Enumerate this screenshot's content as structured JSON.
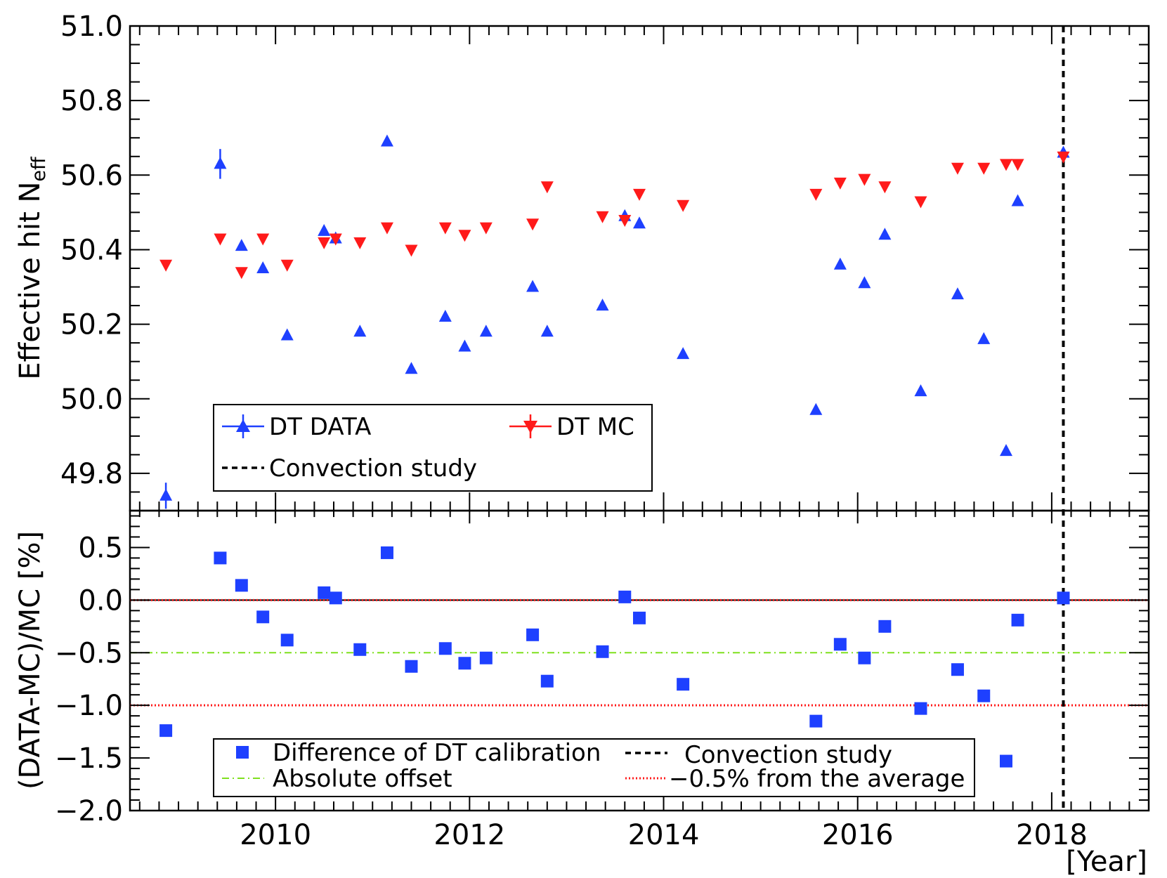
{
  "chart_data": {
    "type": "scatter",
    "x_unit_label": "[Year]",
    "x_range": [
      2008.5,
      2019.0
    ],
    "x_ticks": [
      "2010",
      "2012",
      "2014",
      "2016",
      "2018"
    ],
    "convection_study_x": 2018.12,
    "top_panel": {
      "ylabel_main": "Effective hit N",
      "ylabel_sub": "eff",
      "y_range": [
        49.7,
        51.0
      ],
      "y_ticks": [
        "49.8",
        "50.0",
        "50.2",
        "50.4",
        "50.6",
        "50.8",
        "51.0"
      ],
      "series": [
        {
          "name": "DT DATA",
          "color": "#1e40ff",
          "marker": "triangle-up",
          "x": [
            2008.87,
            2009.43,
            2009.65,
            2009.87,
            2010.12,
            2010.5,
            2010.62,
            2010.87,
            2011.15,
            2011.4,
            2011.75,
            2011.95,
            2012.17,
            2012.65,
            2012.8,
            2013.37,
            2013.6,
            2013.75,
            2014.2,
            2015.57,
            2015.82,
            2016.07,
            2016.28,
            2016.65,
            2017.03,
            2017.3,
            2017.53,
            2017.65,
            2018.12
          ],
          "y": [
            49.74,
            50.63,
            50.41,
            50.35,
            50.17,
            50.45,
            50.43,
            50.18,
            50.69,
            50.08,
            50.22,
            50.14,
            50.18,
            50.3,
            50.18,
            50.25,
            50.49,
            50.47,
            50.12,
            49.97,
            50.36,
            50.31,
            50.44,
            50.02,
            50.28,
            50.16,
            49.86,
            50.53,
            50.66
          ],
          "y_err": [
            0.035,
            0.04,
            0,
            0,
            0,
            0,
            0,
            0,
            0,
            0,
            0,
            0,
            0,
            0,
            0,
            0,
            0,
            0,
            0,
            0,
            0,
            0,
            0,
            0,
            0,
            0,
            0,
            0,
            0
          ]
        },
        {
          "name": "DT MC",
          "color": "#ff1a1a",
          "marker": "triangle-down",
          "x": [
            2008.87,
            2009.43,
            2009.65,
            2009.87,
            2010.12,
            2010.5,
            2010.62,
            2010.87,
            2011.15,
            2011.4,
            2011.75,
            2011.95,
            2012.17,
            2012.65,
            2012.8,
            2013.37,
            2013.6,
            2013.75,
            2014.2,
            2015.57,
            2015.82,
            2016.07,
            2016.28,
            2016.65,
            2017.03,
            2017.3,
            2017.53,
            2017.65,
            2018.12
          ],
          "y": [
            50.36,
            50.43,
            50.34,
            50.43,
            50.36,
            50.42,
            50.43,
            50.42,
            50.46,
            50.4,
            50.46,
            50.44,
            50.46,
            50.47,
            50.57,
            50.49,
            50.48,
            50.55,
            50.52,
            50.55,
            50.58,
            50.59,
            50.57,
            50.53,
            50.62,
            50.62,
            50.63,
            50.63,
            50.65
          ]
        }
      ],
      "legend": {
        "placement": "bottom-left",
        "entries": [
          "DT DATA",
          "DT MC",
          "Convection study"
        ]
      }
    },
    "bottom_panel": {
      "ylabel": "(DATA-MC)/MC [%]",
      "y_range": [
        -2.0,
        0.85
      ],
      "y_ticks": [
        "0.5",
        "0.0",
        "−0.5",
        "−1.0",
        "−1.5",
        "−2.0"
      ],
      "series": [
        {
          "name": "Difference of DT calibration",
          "color": "#1e40ff",
          "marker": "square",
          "x": [
            2008.87,
            2009.43,
            2009.65,
            2009.87,
            2010.12,
            2010.5,
            2010.62,
            2010.87,
            2011.15,
            2011.4,
            2011.75,
            2011.95,
            2012.17,
            2012.65,
            2012.8,
            2013.37,
            2013.6,
            2013.75,
            2014.2,
            2015.57,
            2015.82,
            2016.07,
            2016.28,
            2016.65,
            2017.03,
            2017.3,
            2017.53,
            2017.65,
            2018.12
          ],
          "y": [
            -1.24,
            0.4,
            0.14,
            -0.16,
            -0.38,
            0.07,
            0.02,
            -0.47,
            0.45,
            -0.63,
            -0.46,
            -0.6,
            -0.55,
            -0.33,
            -0.77,
            -0.49,
            0.03,
            -0.17,
            -0.8,
            -1.15,
            -0.42,
            -0.55,
            -0.25,
            -1.03,
            -0.66,
            -0.91,
            -1.53,
            -0.19,
            0.02
          ]
        }
      ],
      "lines": [
        {
          "name": "zero",
          "y": 0.0,
          "color": "#000000",
          "style": "solid"
        },
        {
          "name": "Absolute offset",
          "y": -0.5,
          "color": "#7fe01e",
          "style": "dash-dot"
        },
        {
          "name": "−0.5% from the average",
          "y": -1.0,
          "color": "#ff1a1a",
          "style": "dotted"
        },
        {
          "name": "average",
          "y": 0.0,
          "color": "#ff1a1a",
          "style": "dotted"
        }
      ],
      "legend": {
        "placement": "bottom-center",
        "entries": [
          "Difference of DT calibration",
          "Convection study",
          "Absolute offset",
          "−0.5% from the average"
        ]
      }
    }
  }
}
